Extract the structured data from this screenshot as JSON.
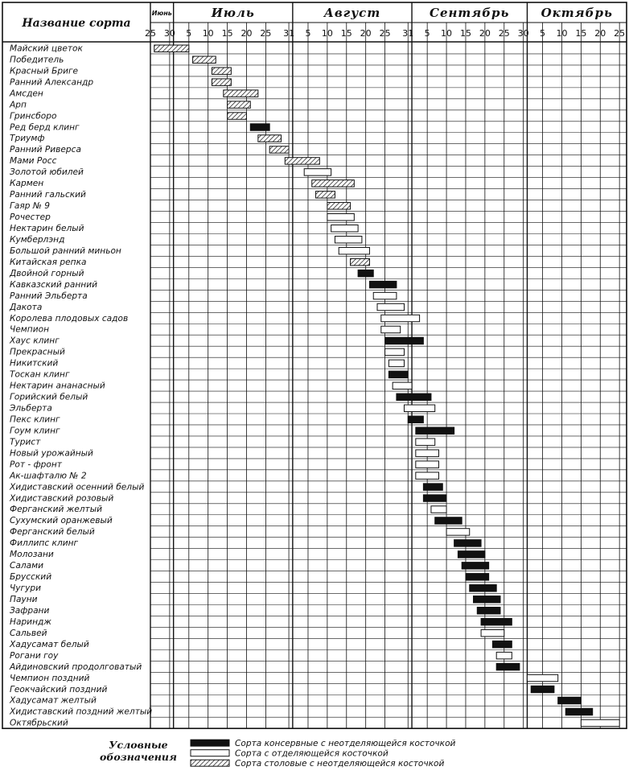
{
  "chart_data": {
    "type": "gantt",
    "header_label": "Название сорта",
    "months": [
      {
        "name": "Июнь",
        "start": 0,
        "end": 6
      },
      {
        "name": "Июль",
        "start": 6,
        "end": 37
      },
      {
        "name": "Август",
        "start": 37,
        "end": 68
      },
      {
        "name": "Сентябрь",
        "start": 68,
        "end": 98
      },
      {
        "name": "Октябрь",
        "start": 98,
        "end": 129
      }
    ],
    "ticks": [
      {
        "day": 0,
        "label": "25"
      },
      {
        "day": 5,
        "label": "30"
      },
      {
        "day": 10,
        "label": "5"
      },
      {
        "day": 15,
        "label": "10"
      },
      {
        "day": 20,
        "label": "15"
      },
      {
        "day": 25,
        "label": "20"
      },
      {
        "day": 30,
        "label": "25"
      },
      {
        "day": 36,
        "label": "31"
      },
      {
        "day": 41,
        "label": "5"
      },
      {
        "day": 46,
        "label": "10"
      },
      {
        "day": 51,
        "label": "15"
      },
      {
        "day": 56,
        "label": "20"
      },
      {
        "day": 61,
        "label": "25"
      },
      {
        "day": 67,
        "label": "31"
      },
      {
        "day": 72,
        "label": "5"
      },
      {
        "day": 77,
        "label": "10"
      },
      {
        "day": 82,
        "label": "15"
      },
      {
        "day": 87,
        "label": "20"
      },
      {
        "day": 92,
        "label": "25"
      },
      {
        "day": 97,
        "label": "30"
      },
      {
        "day": 102,
        "label": "5"
      },
      {
        "day": 107,
        "label": "10"
      },
      {
        "day": 112,
        "label": "15"
      },
      {
        "day": 117,
        "label": "20"
      },
      {
        "day": 122,
        "label": "25"
      }
    ],
    "legend": [
      {
        "type": "black",
        "label": "Сорта консервные с неотделяющейся косточкой"
      },
      {
        "type": "white",
        "label": "Сорта с отделяющейся косточкой"
      },
      {
        "type": "hatch",
        "label": "Сорта столовые с неотделяющейся косточкой"
      }
    ],
    "legend_title_1": "Условные",
    "legend_title_2": "обозначения",
    "rows": [
      {
        "name": "Майский цветок",
        "start": 1,
        "end": 10,
        "type": "hatch"
      },
      {
        "name": "Победитель",
        "start": 11,
        "end": 17,
        "type": "hatch"
      },
      {
        "name": "Красный Бриге",
        "start": 16,
        "end": 21,
        "type": "hatch"
      },
      {
        "name": "Ранний Александр",
        "start": 16,
        "end": 21,
        "type": "hatch"
      },
      {
        "name": "Амсден",
        "start": 19,
        "end": 28,
        "type": "hatch"
      },
      {
        "name": "Арп",
        "start": 20,
        "end": 26,
        "type": "hatch"
      },
      {
        "name": "Гринсборо",
        "start": 20,
        "end": 25,
        "type": "hatch"
      },
      {
        "name": "Ред берд клинг",
        "start": 26,
        "end": 31,
        "type": "black"
      },
      {
        "name": "Триумф",
        "start": 28,
        "end": 34,
        "type": "hatch"
      },
      {
        "name": "Ранний Риверса",
        "start": 31,
        "end": 36,
        "type": "hatch"
      },
      {
        "name": "Мами Росс",
        "start": 35,
        "end": 44,
        "type": "hatch"
      },
      {
        "name": "Золотой юбилей",
        "start": 40,
        "end": 47,
        "type": "white"
      },
      {
        "name": "Кармен",
        "start": 42,
        "end": 53,
        "type": "hatch"
      },
      {
        "name": "Ранний гальский",
        "start": 43,
        "end": 48,
        "type": "hatch"
      },
      {
        "name": "Гаяр   № 9",
        "start": 46,
        "end": 52,
        "type": "hatch"
      },
      {
        "name": "Рочестер",
        "start": 46,
        "end": 53,
        "type": "white"
      },
      {
        "name": "Нектарин белый",
        "start": 47,
        "end": 54,
        "type": "white"
      },
      {
        "name": "Кумберлэнд",
        "start": 48,
        "end": 55,
        "type": "white"
      },
      {
        "name": "Большой ранний миньон",
        "start": 49,
        "end": 57,
        "type": "white"
      },
      {
        "name": "Китайская репка",
        "start": 52,
        "end": 57,
        "type": "hatch"
      },
      {
        "name": "Двойной горный",
        "start": 54,
        "end": 58,
        "type": "black"
      },
      {
        "name": "Кавказский ранний",
        "start": 57,
        "end": 64,
        "type": "black"
      },
      {
        "name": "Ранний Эльберта",
        "start": 58,
        "end": 64,
        "type": "white"
      },
      {
        "name": "Дакота",
        "start": 59,
        "end": 66,
        "type": "white"
      },
      {
        "name": "Королева плодовых садов",
        "start": 60,
        "end": 70,
        "type": "white"
      },
      {
        "name": "Чемпион",
        "start": 60,
        "end": 65,
        "type": "white"
      },
      {
        "name": "Хаус клинг",
        "start": 61,
        "end": 71,
        "type": "black"
      },
      {
        "name": "Прекрасный",
        "start": 61,
        "end": 66,
        "type": "white"
      },
      {
        "name": "Никитский",
        "start": 62,
        "end": 66,
        "type": "white"
      },
      {
        "name": "Тоскан клинг",
        "start": 62,
        "end": 67,
        "type": "black"
      },
      {
        "name": "Нектарин ананасный",
        "start": 63,
        "end": 68,
        "type": "white"
      },
      {
        "name": "Горийский белый",
        "start": 64,
        "end": 73,
        "type": "black"
      },
      {
        "name": "Эльберта",
        "start": 66,
        "end": 74,
        "type": "white"
      },
      {
        "name": "Пекс клинг",
        "start": 67,
        "end": 71,
        "type": "black"
      },
      {
        "name": "Гоум клинг",
        "start": 69,
        "end": 79,
        "type": "black"
      },
      {
        "name": "Турист",
        "start": 69,
        "end": 74,
        "type": "white"
      },
      {
        "name": "Новый урожайный",
        "start": 69,
        "end": 75,
        "type": "white"
      },
      {
        "name": "Рот - фронт",
        "start": 69,
        "end": 75,
        "type": "white"
      },
      {
        "name": "Ак-шафталю № 2",
        "start": 69,
        "end": 75,
        "type": "white"
      },
      {
        "name": "Хидиставский осенний белый",
        "start": 71,
        "end": 76,
        "type": "black"
      },
      {
        "name": "Хидиставский розовый",
        "start": 71,
        "end": 77,
        "type": "black"
      },
      {
        "name": "Ферганский желтый",
        "start": 73,
        "end": 77,
        "type": "white"
      },
      {
        "name": "Сухумский оранжевый",
        "start": 74,
        "end": 81,
        "type": "black"
      },
      {
        "name": "Ферганский белый",
        "start": 77,
        "end": 83,
        "type": "white"
      },
      {
        "name": "Филлипс клинг",
        "start": 79,
        "end": 86,
        "type": "black"
      },
      {
        "name": "Молозани",
        "start": 80,
        "end": 87,
        "type": "black"
      },
      {
        "name": "Салами",
        "start": 81,
        "end": 88,
        "type": "black"
      },
      {
        "name": "Брусский",
        "start": 82,
        "end": 88,
        "type": "black"
      },
      {
        "name": "Чугури",
        "start": 83,
        "end": 90,
        "type": "black"
      },
      {
        "name": "Пауни",
        "start": 84,
        "end": 91,
        "type": "black"
      },
      {
        "name": "Зафрани",
        "start": 85,
        "end": 91,
        "type": "black"
      },
      {
        "name": "Нариндж",
        "start": 86,
        "end": 94,
        "type": "black"
      },
      {
        "name": "Сальвей",
        "start": 86,
        "end": 92,
        "type": "white"
      },
      {
        "name": "Хадусамат белый",
        "start": 89,
        "end": 94,
        "type": "black"
      },
      {
        "name": "Рогани гоу",
        "start": 90,
        "end": 94,
        "type": "white"
      },
      {
        "name": "Айдиновский продолговатый",
        "start": 90,
        "end": 96,
        "type": "black"
      },
      {
        "name": "Чемпион поздний",
        "start": 98,
        "end": 106,
        "type": "white"
      },
      {
        "name": "Геокчайский поздний",
        "start": 99,
        "end": 105,
        "type": "black"
      },
      {
        "name": "Хадусамат желтый",
        "start": 106,
        "end": 112,
        "type": "black"
      },
      {
        "name": "Хидиставский поздний желтый",
        "start": 108,
        "end": 115,
        "type": "black"
      },
      {
        "name": "Октябрьский",
        "start": 112,
        "end": 122,
        "type": "white"
      }
    ]
  }
}
